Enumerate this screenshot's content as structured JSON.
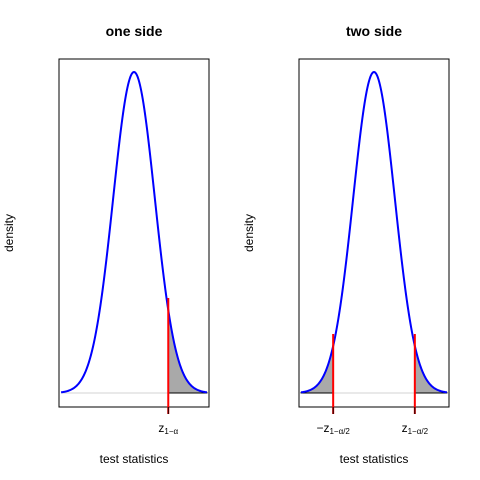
{
  "chart_data": [
    {
      "type": "line",
      "title": "one side",
      "xlabel": "test statistics",
      "ylabel": "density",
      "distribution": "standard normal",
      "xlim": [
        -3.6,
        3.6
      ],
      "ylim": [
        0,
        0.42
      ],
      "critical_values": [
        1.645
      ],
      "tick_labels": [
        {
          "main": "z",
          "sub": "1−α"
        }
      ],
      "shaded_regions": [
        [
          1.645,
          3.5
        ]
      ],
      "colors": {
        "curve": "#0000ff",
        "critical_line": "#ff0000",
        "shade": "#a9a9a9",
        "baseline": "#d3d3d3"
      }
    },
    {
      "type": "line",
      "title": "two side",
      "xlabel": "test statistics",
      "ylabel": "density",
      "distribution": "standard normal",
      "xlim": [
        -3.6,
        3.6
      ],
      "ylim": [
        0,
        0.42
      ],
      "critical_values": [
        -1.96,
        1.96
      ],
      "tick_labels": [
        {
          "main": "−z",
          "sub": "1−α/2"
        },
        {
          "main": "z",
          "sub": "1−α/2"
        }
      ],
      "shaded_regions": [
        [
          -3.5,
          -1.96
        ],
        [
          1.96,
          3.5
        ]
      ],
      "colors": {
        "curve": "#0000ff",
        "critical_line": "#ff0000",
        "shade": "#a9a9a9",
        "baseline": "#d3d3d3"
      }
    }
  ]
}
